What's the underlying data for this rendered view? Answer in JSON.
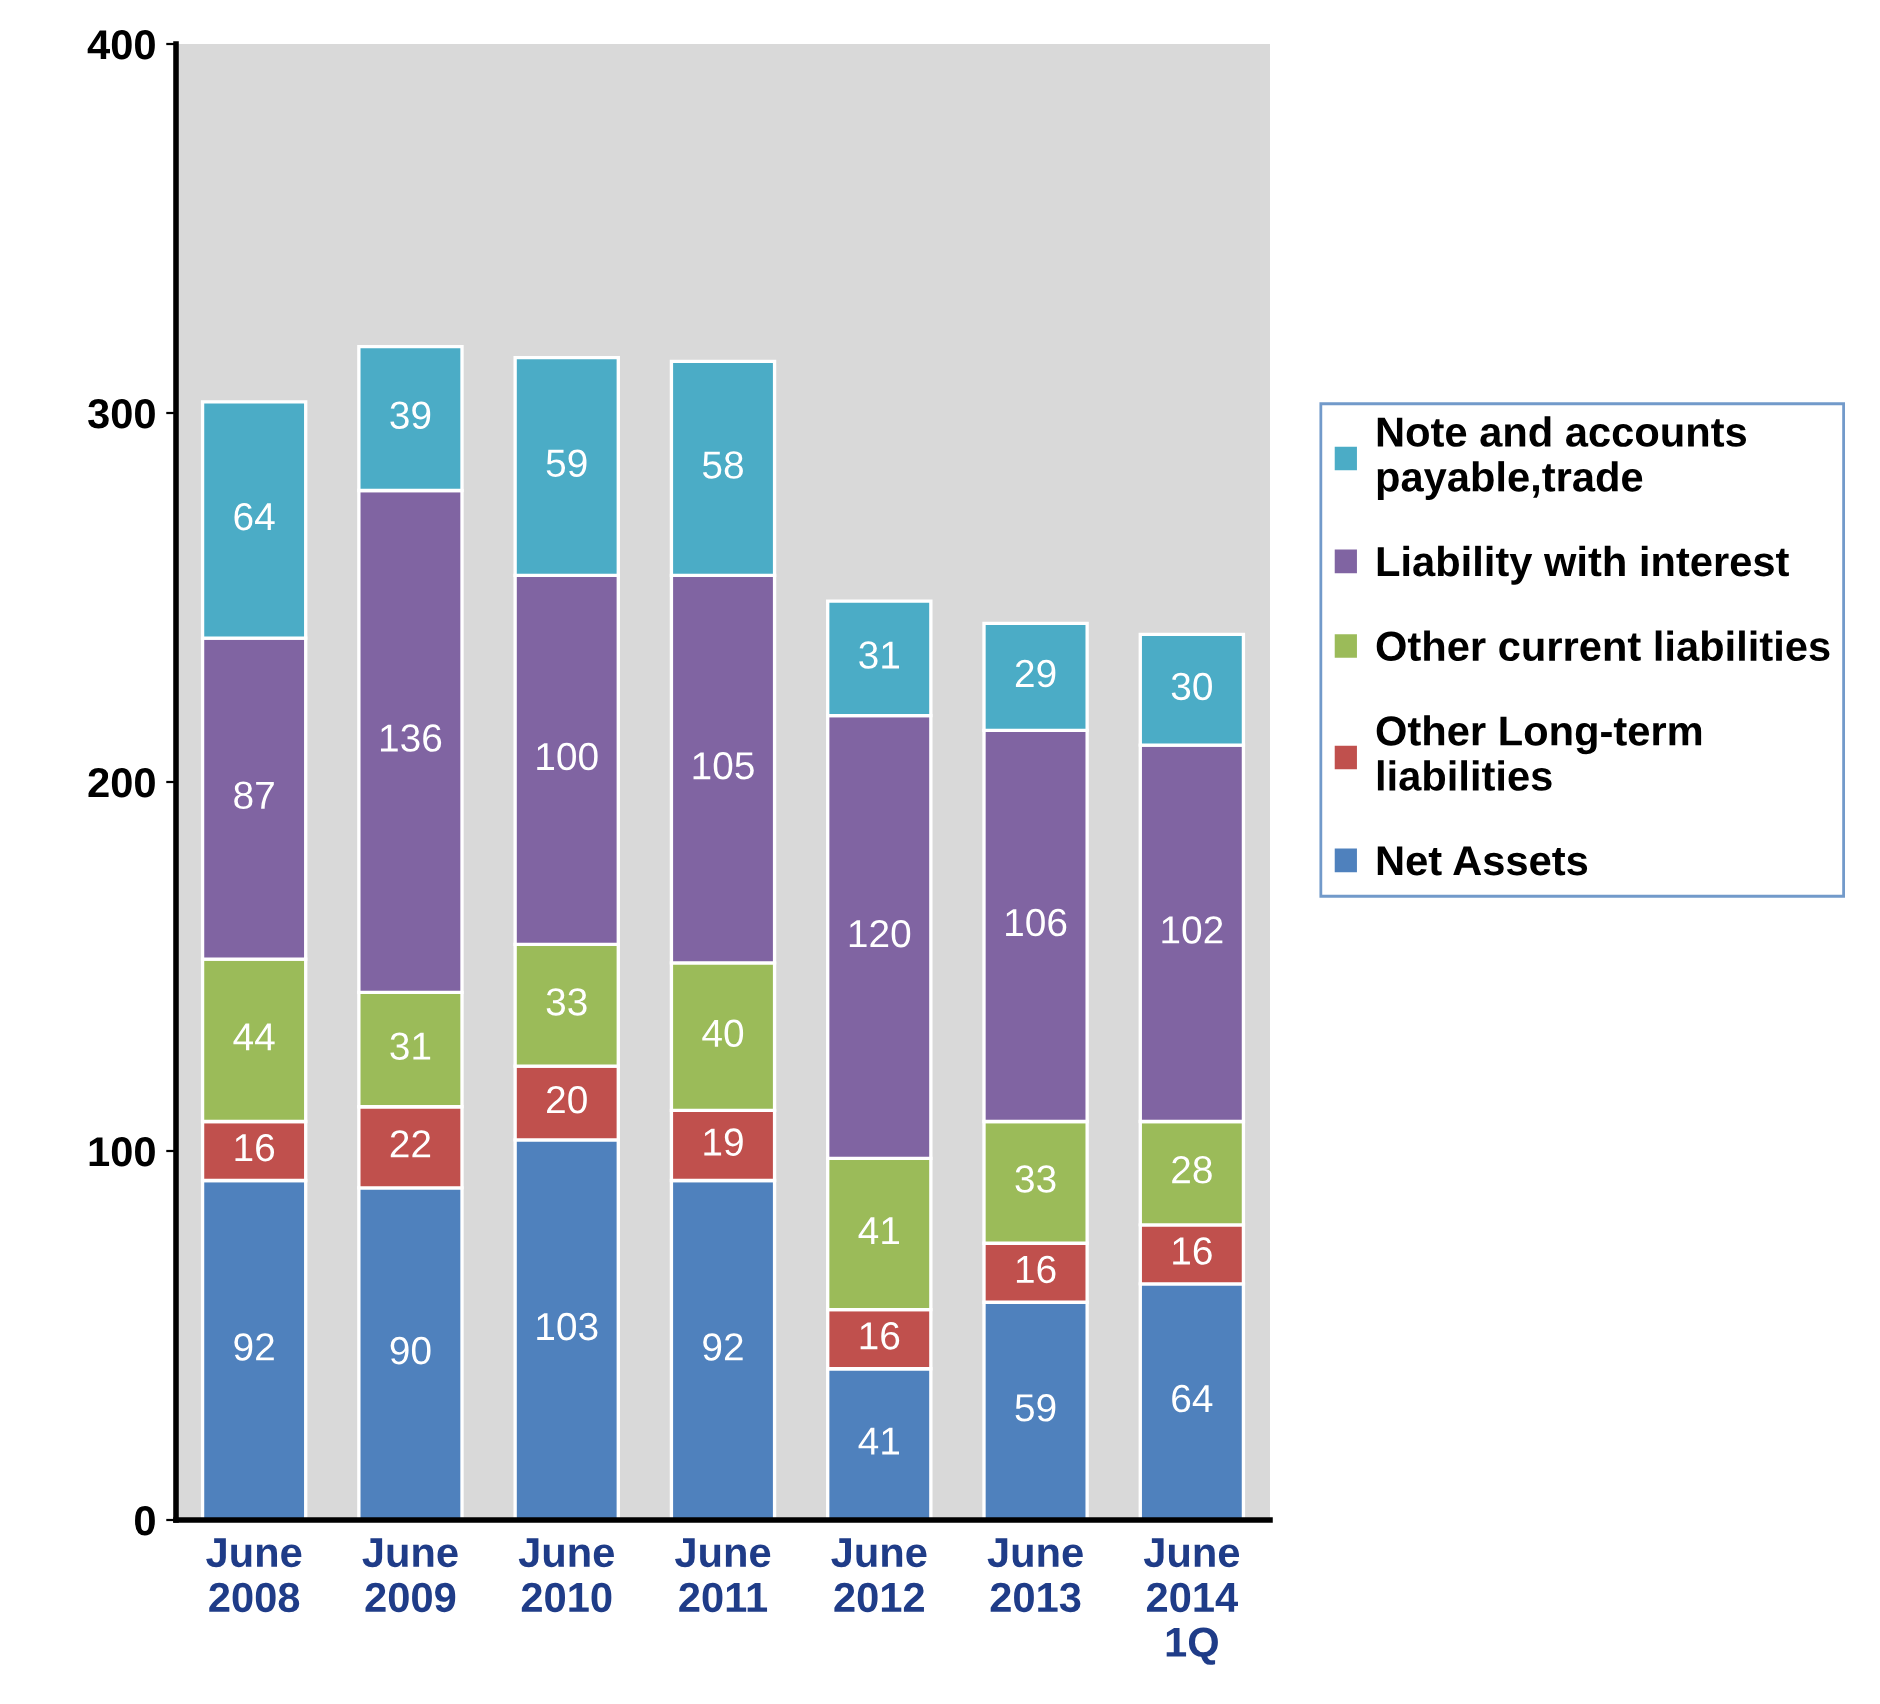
{
  "chart_data": {
    "type": "bar",
    "stacked": true,
    "data_labels": true,
    "grid": false,
    "legend": "right",
    "categories": [
      "June\n2008",
      "June\n2009",
      "June\n2010",
      "June\n2011",
      "June\n2012",
      "June\n2013",
      "June\n2014\n1Q"
    ],
    "series": [
      {
        "name": "Net Assets",
        "color": "#4f81bd",
        "values": [
          92,
          90,
          103,
          92,
          41,
          59,
          64
        ]
      },
      {
        "name": "Other Long-term\nliabilities",
        "color": "#c0504d",
        "values": [
          16,
          22,
          20,
          19,
          16,
          16,
          16
        ]
      },
      {
        "name": "Other current liabilities",
        "color": "#9bbb59",
        "values": [
          44,
          31,
          33,
          40,
          41,
          33,
          28
        ]
      },
      {
        "name": "Liability with interest",
        "color": "#8064a2",
        "values": [
          87,
          136,
          100,
          105,
          120,
          106,
          102
        ]
      },
      {
        "name": "Note and accounts\npayable,trade",
        "color": "#4bacc6",
        "values": [
          64,
          39,
          59,
          58,
          31,
          29,
          30
        ]
      }
    ],
    "ylim": [
      0,
      400
    ],
    "yticks": [
      0,
      100,
      200,
      300,
      400
    ]
  }
}
